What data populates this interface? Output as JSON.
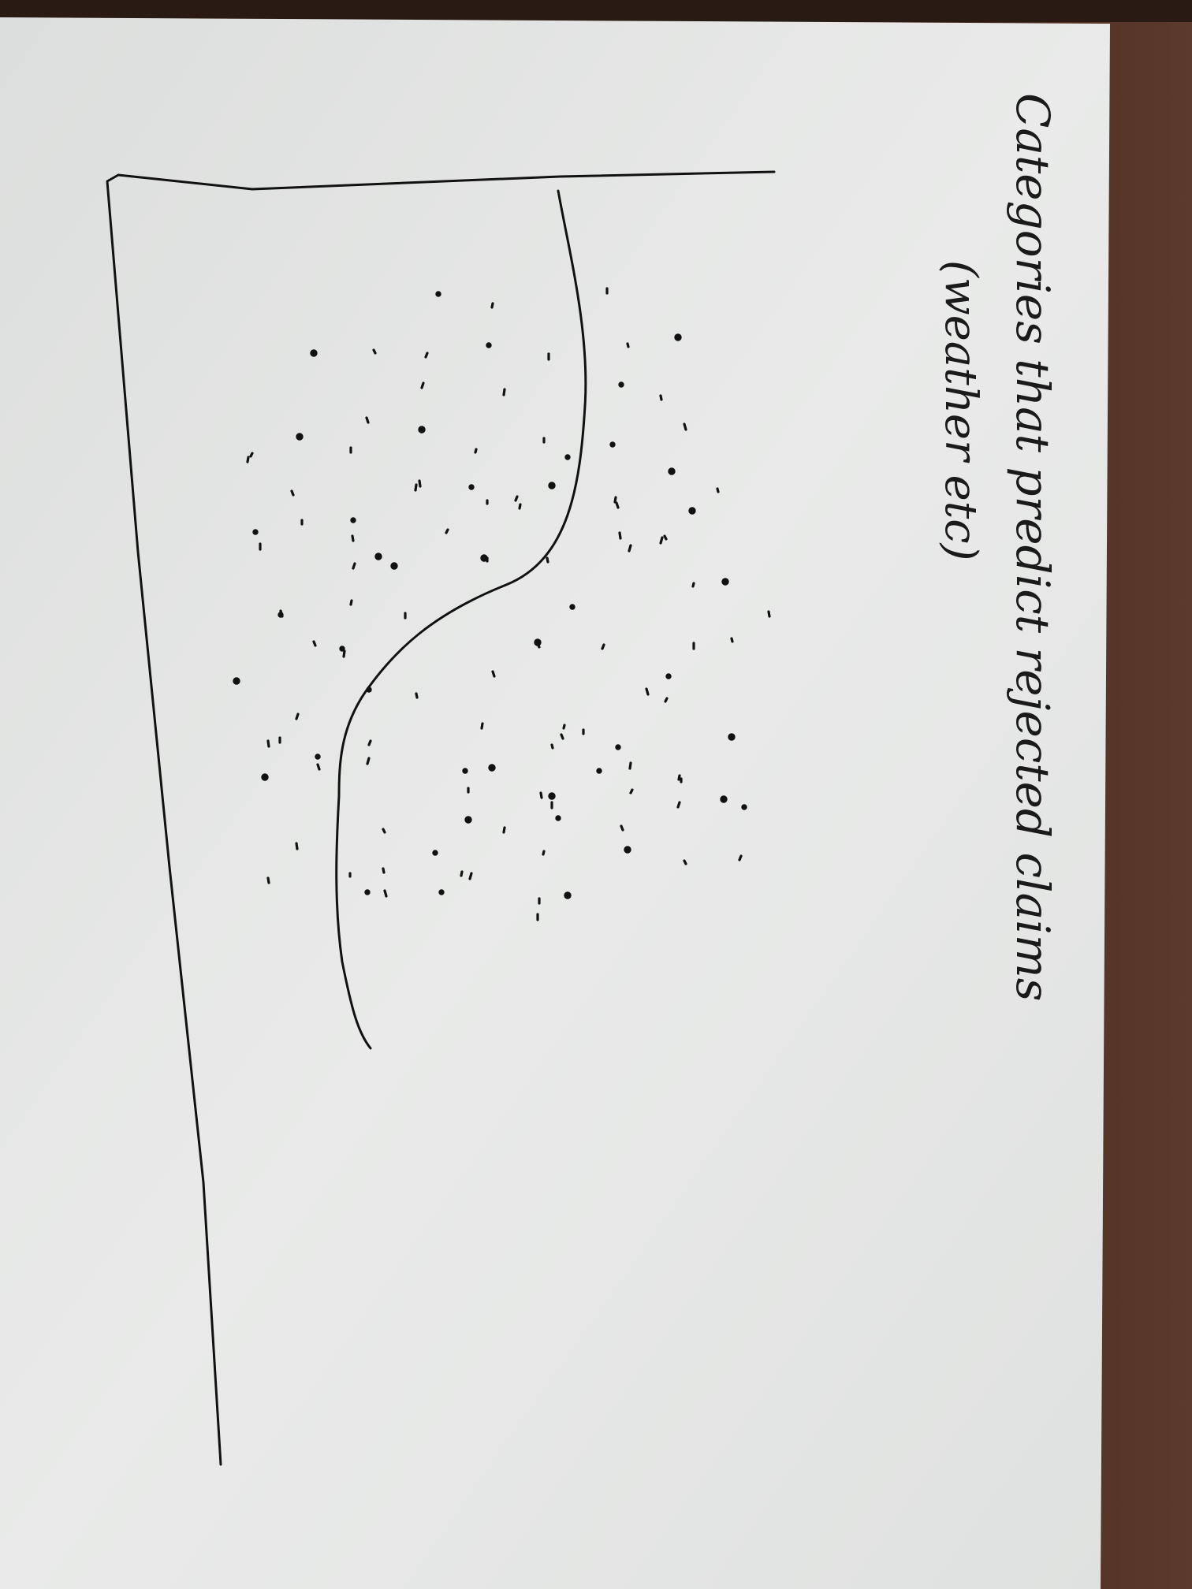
{
  "sketch": {
    "title_line1": "Categories that predict rejected claims",
    "title_line2": "(weather etc)",
    "ink_color": "#111111",
    "paper_color": "#e9eae9",
    "desk_color": "#4a2e22"
  },
  "chart_data": {
    "type": "scatter",
    "title": "Categories that predict rejected claims (weather etc)",
    "xlabel": "",
    "ylabel": "",
    "grid": false,
    "legend": "none",
    "has_decision_boundary": true
  }
}
